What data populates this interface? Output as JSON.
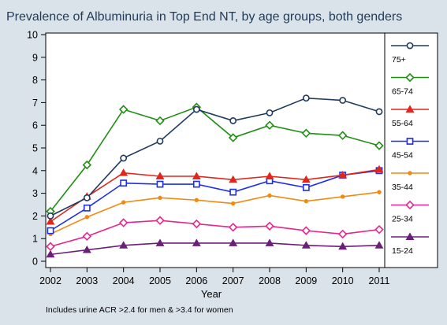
{
  "chart_data": {
    "type": "line",
    "title": "Prevalence of Albuminuria in Top End NT, by age groups, both genders",
    "xlabel": "Year",
    "ylabel": "",
    "note": "Includes urine ACR >2.4 for men & >3.4 for women",
    "x": [
      2002,
      2003,
      2004,
      2005,
      2006,
      2007,
      2008,
      2009,
      2010,
      2011
    ],
    "ylim": [
      0,
      10
    ],
    "yticks": [
      0,
      1,
      2,
      3,
      4,
      5,
      6,
      7,
      8,
      9,
      10
    ],
    "grid": false,
    "legend_position": "right",
    "series": [
      {
        "name": "75+",
        "color": "#1f3a5f",
        "marker": "circle",
        "values": [
          2.0,
          2.8,
          4.55,
          5.3,
          6.7,
          6.2,
          6.55,
          7.2,
          7.1,
          6.6
        ]
      },
      {
        "name": "65-74",
        "color": "#1f8f12",
        "marker": "diamond",
        "values": [
          2.2,
          4.25,
          6.7,
          6.2,
          6.8,
          5.45,
          6.0,
          5.65,
          5.55,
          5.1
        ]
      },
      {
        "name": "55-64",
        "color": "#e2261c",
        "marker": "triangle",
        "values": [
          1.75,
          2.85,
          3.9,
          3.75,
          3.75,
          3.6,
          3.75,
          3.6,
          3.8,
          4.05
        ]
      },
      {
        "name": "45-54",
        "color": "#1d2fe8",
        "marker": "square",
        "values": [
          1.35,
          2.35,
          3.45,
          3.4,
          3.4,
          3.05,
          3.55,
          3.25,
          3.8,
          4.0
        ]
      },
      {
        "name": "35-44",
        "color": "#f08a12",
        "marker": "dot",
        "values": [
          1.2,
          1.95,
          2.6,
          2.8,
          2.7,
          2.55,
          2.9,
          2.65,
          2.85,
          3.05
        ]
      },
      {
        "name": "25-34",
        "color": "#e8248e",
        "marker": "diamond",
        "values": [
          0.65,
          1.1,
          1.7,
          1.8,
          1.65,
          1.5,
          1.55,
          1.35,
          1.2,
          1.4
        ]
      },
      {
        "name": "15-24",
        "color": "#6b1f78",
        "marker": "triangle",
        "values": [
          0.3,
          0.5,
          0.7,
          0.8,
          0.8,
          0.8,
          0.8,
          0.7,
          0.65,
          0.7
        ]
      }
    ]
  }
}
